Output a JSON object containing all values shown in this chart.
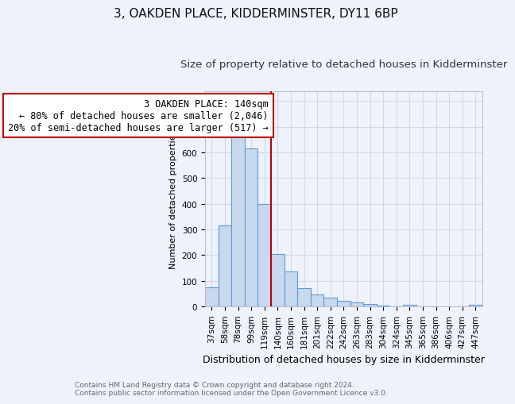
{
  "title": "3, OAKDEN PLACE, KIDDERMINSTER, DY11 6BP",
  "subtitle": "Size of property relative to detached houses in Kidderminster",
  "xlabel": "Distribution of detached houses by size in Kidderminster",
  "ylabel": "Number of detached properties",
  "categories": [
    "37sqm",
    "58sqm",
    "78sqm",
    "99sqm",
    "119sqm",
    "140sqm",
    "160sqm",
    "181sqm",
    "201sqm",
    "222sqm",
    "242sqm",
    "263sqm",
    "283sqm",
    "304sqm",
    "324sqm",
    "345sqm",
    "365sqm",
    "386sqm",
    "406sqm",
    "427sqm",
    "447sqm"
  ],
  "values": [
    75,
    315,
    670,
    615,
    400,
    205,
    135,
    70,
    45,
    35,
    20,
    15,
    10,
    2,
    0,
    7,
    0,
    0,
    0,
    0,
    7
  ],
  "bar_color": "#c8d8ee",
  "bar_edge_color": "#5b9bd5",
  "vline_x": 4.5,
  "vline_color": "#c00000",
  "annotation_text": "3 OAKDEN PLACE: 140sqm\n← 80% of detached houses are smaller (2,046)\n20% of semi-detached houses are larger (517) →",
  "annotation_box_color": "#c00000",
  "ylim": [
    0,
    840
  ],
  "yticks": [
    0,
    100,
    200,
    300,
    400,
    500,
    600,
    700,
    800
  ],
  "footer_text": "Contains HM Land Registry data © Crown copyright and database right 2024.\nContains public sector information licensed under the Open Government Licence v3.0.",
  "bg_color": "#eef2fa",
  "grid_color": "#d0d8e8",
  "title_fontsize": 11,
  "subtitle_fontsize": 9.5,
  "xlabel_fontsize": 9,
  "ylabel_fontsize": 8,
  "tick_fontsize": 7.5,
  "annotation_fontsize": 8.5,
  "footer_fontsize": 6.5
}
